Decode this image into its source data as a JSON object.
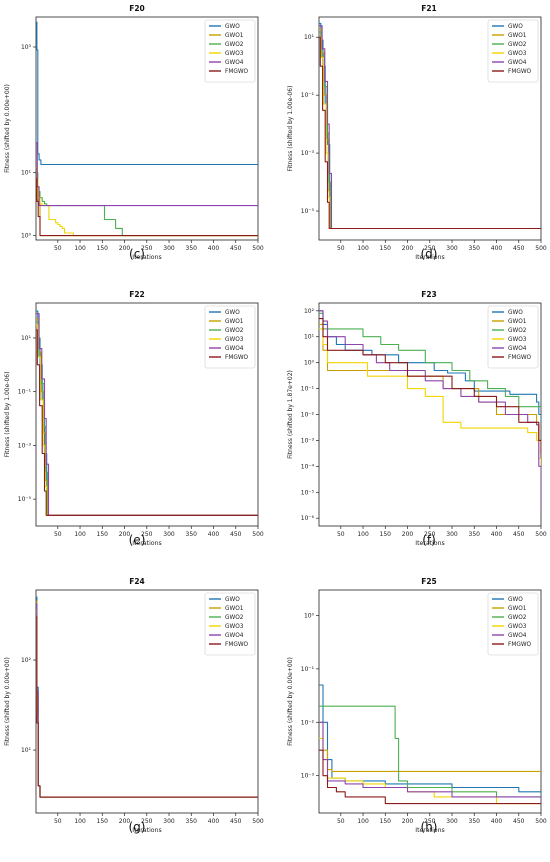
{
  "figure_captions": [
    "(c)",
    "(d)",
    "(e)",
    "(f)",
    "(g)",
    "(h)"
  ],
  "series_names": [
    "GWO",
    "GWO1",
    "GWO2",
    "GWO3",
    "GWO4",
    "FMGWO"
  ],
  "series_colors": [
    "#1f77b4",
    "#c8a000",
    "#4caf50",
    "#f2d400",
    "#8e44ad",
    "#8b1a1a"
  ],
  "chart_data": [
    {
      "type": "line",
      "title": "F20",
      "xlabel": "Iterations",
      "ylabel": "Fitness (shifted by 0.00e+00)",
      "xticks": [
        50,
        100,
        150,
        200,
        250,
        300,
        350,
        400,
        450,
        500
      ],
      "ytick_exponents": [
        0,
        1,
        3
      ],
      "yscale": "log",
      "ylim": [
        0.85,
        3000
      ],
      "xlim": [
        1,
        500
      ],
      "legend": "top-right",
      "series": [
        {
          "name": "GWO",
          "x": [
            1,
            3,
            5,
            8,
            12,
            500
          ],
          "y": [
            2500,
            900,
            20,
            16,
            13.5,
            13.5
          ]
        },
        {
          "name": "GWO1",
          "x": [
            1,
            3,
            6,
            10,
            500
          ],
          "y": [
            12,
            5,
            3.5,
            1,
            1
          ]
        },
        {
          "name": "GWO2",
          "x": [
            1,
            5,
            10,
            15,
            20,
            25,
            30,
            150,
            155,
            170,
            180,
            195,
            500
          ],
          "y": [
            10,
            5,
            4,
            3.5,
            3.2,
            3.0,
            3.0,
            3.0,
            1.8,
            1.8,
            1.3,
            1.0,
            1.0
          ]
        },
        {
          "name": "GWO3",
          "x": [
            1,
            5,
            10,
            15,
            25,
            30,
            40,
            45,
            50,
            55,
            60,
            65,
            80,
            85,
            500
          ],
          "y": [
            8,
            4,
            3.2,
            3.0,
            3.0,
            1.8,
            1.8,
            1.6,
            1.5,
            1.4,
            1.3,
            1.1,
            1.1,
            1.0,
            1.0
          ]
        },
        {
          "name": "GWO4",
          "x": [
            1,
            4,
            8,
            500
          ],
          "y": [
            30,
            6,
            3.0,
            3.0
          ]
        },
        {
          "name": "FMGWO",
          "x": [
            1,
            3,
            6,
            10,
            500
          ],
          "y": [
            8,
            3.5,
            2,
            1,
            1
          ]
        }
      ]
    },
    {
      "type": "line",
      "title": "F21",
      "xlabel": "Iterations",
      "ylabel": "Fitness (shifted by 1.00e-06)",
      "xticks": [
        50,
        100,
        150,
        200,
        250,
        300,
        350,
        400,
        450,
        500
      ],
      "ytick_exponents": [
        -5,
        -3,
        -1,
        1
      ],
      "yscale": "log",
      "ylim": [
        1e-06,
        50
      ],
      "xlim": [
        1,
        500
      ],
      "legend": "top-right",
      "series": [
        {
          "name": "GWO",
          "x": [
            1,
            5,
            10,
            15,
            20,
            25,
            28,
            500
          ],
          "y": [
            30,
            8,
            1,
            0.05,
            0.002,
            1e-05,
            2.5e-06,
            2.5e-06
          ]
        },
        {
          "name": "GWO1",
          "x": [
            1,
            6,
            12,
            18,
            22,
            26,
            500
          ],
          "y": [
            20,
            3,
            0.1,
            0.003,
            5e-05,
            2.5e-06,
            2.5e-06
          ]
        },
        {
          "name": "GWO2",
          "x": [
            1,
            7,
            13,
            19,
            23,
            27,
            500
          ],
          "y": [
            15,
            2,
            0.2,
            0.005,
            0.0001,
            2.5e-06,
            2.5e-06
          ]
        },
        {
          "name": "GWO3",
          "x": [
            1,
            5,
            11,
            17,
            21,
            25,
            500
          ],
          "y": [
            10,
            2,
            0.05,
            0.001,
            3e-05,
            2.5e-06,
            2.5e-06
          ]
        },
        {
          "name": "GWO4",
          "x": [
            1,
            8,
            14,
            20,
            24,
            29,
            500
          ],
          "y": [
            25,
            4,
            0.3,
            0.01,
            0.0002,
            2.5e-06,
            2.5e-06
          ]
        },
        {
          "name": "FMGWO",
          "x": [
            1,
            4,
            9,
            15,
            20,
            24,
            500
          ],
          "y": [
            10,
            1,
            0.03,
            0.0005,
            2e-05,
            2.5e-06,
            2.5e-06
          ]
        }
      ]
    },
    {
      "type": "line",
      "title": "F22",
      "xlabel": "Iterations",
      "ylabel": "Fitness (shifted by 1.00e-06)",
      "xticks": [
        50,
        100,
        150,
        200,
        250,
        300,
        350,
        400,
        450,
        500
      ],
      "ytick_exponents": [
        -5,
        -3,
        -1,
        1
      ],
      "yscale": "log",
      "ylim": [
        1e-06,
        200
      ],
      "xlim": [
        1,
        500
      ],
      "legend": "top-right",
      "series": [
        {
          "name": "GWO",
          "x": [
            1,
            5,
            10,
            15,
            20,
            25,
            28,
            500
          ],
          "y": [
            100,
            10,
            1,
            0.05,
            0.0005,
            1e-05,
            2.5e-06,
            2.5e-06
          ]
        },
        {
          "name": "GWO1",
          "x": [
            1,
            6,
            12,
            18,
            22,
            26,
            500
          ],
          "y": [
            50,
            3,
            0.1,
            0.003,
            5e-05,
            2.5e-06,
            2.5e-06
          ]
        },
        {
          "name": "GWO2",
          "x": [
            1,
            7,
            13,
            19,
            23,
            27,
            500
          ],
          "y": [
            40,
            2,
            0.2,
            0.005,
            0.0001,
            2.5e-06,
            2.5e-06
          ]
        },
        {
          "name": "GWO3",
          "x": [
            1,
            5,
            11,
            17,
            21,
            25,
            500
          ],
          "y": [
            30,
            2,
            0.05,
            0.001,
            3e-05,
            2.5e-06,
            2.5e-06
          ]
        },
        {
          "name": "GWO4",
          "x": [
            1,
            8,
            14,
            20,
            24,
            29,
            500
          ],
          "y": [
            80,
            4,
            0.3,
            0.01,
            0.0002,
            2.5e-06,
            2.5e-06
          ]
        },
        {
          "name": "FMGWO",
          "x": [
            1,
            4,
            9,
            15,
            20,
            24,
            500
          ],
          "y": [
            20,
            1,
            0.03,
            0.0005,
            2e-05,
            2.5e-06,
            2.5e-06
          ]
        }
      ]
    },
    {
      "type": "line",
      "title": "F23",
      "xlabel": "Iterations",
      "ylabel": "Fitness (shifted by 1.87e+02)",
      "xticks": [
        50,
        100,
        150,
        200,
        250,
        300,
        350,
        400,
        450,
        500
      ],
      "ytick_exponents": [
        -6,
        -5,
        -4,
        -3,
        -2,
        -1,
        0,
        1,
        2
      ],
      "yscale": "log",
      "ylim": [
        5e-07,
        200
      ],
      "xlim": [
        1,
        500
      ],
      "legend": "top-right",
      "series": [
        {
          "name": "GWO",
          "x": [
            1,
            10,
            20,
            40,
            60,
            120,
            180,
            220,
            260,
            290,
            330,
            350,
            390,
            430,
            470,
            490,
            495,
            500
          ],
          "y": [
            100,
            30,
            10,
            5,
            3,
            2,
            1,
            1,
            0.5,
            0.4,
            0.2,
            0.08,
            0.08,
            0.06,
            0.06,
            0.03,
            0.01,
            0.005
          ]
        },
        {
          "name": "GWO1",
          "x": [
            1,
            10,
            20,
            60,
            110,
            160,
            200,
            250,
            280,
            320,
            360,
            400,
            470,
            490,
            495,
            500
          ],
          "y": [
            30,
            3,
            0.5,
            0.5,
            0.5,
            0.5,
            0.3,
            0.3,
            0.1,
            0.1,
            0.03,
            0.01,
            0.01,
            0.004,
            0.001,
            0.0003
          ]
        },
        {
          "name": "GWO2",
          "x": [
            1,
            10,
            20,
            40,
            100,
            140,
            180,
            240,
            300,
            340,
            380,
            420,
            450,
            490,
            500
          ],
          "y": [
            80,
            20,
            20,
            20,
            10,
            5,
            3,
            1,
            0.5,
            0.2,
            0.1,
            0.05,
            0.02,
            0.02,
            0.02
          ]
        },
        {
          "name": "GWO3",
          "x": [
            1,
            10,
            20,
            60,
            110,
            150,
            200,
            240,
            280,
            320,
            380,
            420,
            470,
            490,
            495,
            500
          ],
          "y": [
            20,
            5,
            1,
            1,
            0.3,
            0.3,
            0.1,
            0.05,
            0.005,
            0.003,
            0.003,
            0.003,
            0.002,
            0.001,
            0.0002,
            0.0001
          ]
        },
        {
          "name": "GWO4",
          "x": [
            1,
            10,
            20,
            60,
            100,
            130,
            160,
            200,
            240,
            280,
            320,
            360,
            420,
            470,
            490,
            495,
            500
          ],
          "y": [
            100,
            40,
            10,
            5,
            2,
            1,
            0.5,
            0.5,
            0.2,
            0.1,
            0.05,
            0.03,
            0.01,
            0.005,
            0.004,
            0.0001,
            2e-06
          ]
        },
        {
          "name": "FMGWO",
          "x": [
            1,
            10,
            20,
            40,
            100,
            150,
            200,
            250,
            300,
            350,
            400,
            450,
            490,
            495,
            500
          ],
          "y": [
            50,
            10,
            3,
            3,
            2,
            1,
            0.3,
            0.3,
            0.1,
            0.05,
            0.02,
            0.005,
            0.005,
            0.001,
            0.0003
          ]
        }
      ]
    },
    {
      "type": "line",
      "title": "F24",
      "xlabel": "Iterations",
      "ylabel": "Fitness (shifted by 0.00e+00)",
      "xticks": [
        50,
        100,
        150,
        200,
        250,
        300,
        350,
        400,
        450,
        500
      ],
      "ytick_exponents": [
        1,
        2
      ],
      "yscale": "log",
      "ylim": [
        2,
        600
      ],
      "xlim": [
        1,
        500
      ],
      "legend": "top-right",
      "series": [
        {
          "name": "GWO",
          "x": [
            1,
            3,
            6,
            10,
            500
          ],
          "y": [
            500,
            50,
            4,
            3,
            3
          ]
        },
        {
          "name": "GWO1",
          "x": [
            1,
            3,
            6,
            10,
            500
          ],
          "y": [
            450,
            40,
            4,
            3,
            3
          ]
        },
        {
          "name": "GWO2",
          "x": [
            1,
            3,
            6,
            10,
            500
          ],
          "y": [
            400,
            30,
            4,
            3,
            3
          ]
        },
        {
          "name": "GWO3",
          "x": [
            1,
            3,
            6,
            10,
            500
          ],
          "y": [
            350,
            25,
            4,
            3,
            3
          ]
        },
        {
          "name": "GWO4",
          "x": [
            1,
            3,
            6,
            10,
            500
          ],
          "y": [
            420,
            45,
            4,
            3,
            3
          ]
        },
        {
          "name": "FMGWO",
          "x": [
            1,
            3,
            6,
            10,
            500
          ],
          "y": [
            300,
            20,
            4,
            3,
            3
          ]
        }
      ]
    },
    {
      "type": "line",
      "title": "F25",
      "xlabel": "Iterations",
      "ylabel": "Fitness (shifted by 0.00e+00)",
      "xticks": [
        50,
        100,
        150,
        200,
        250,
        300,
        350,
        400,
        450,
        500
      ],
      "ytick_exponents": [
        -3,
        -2,
        -1,
        0
      ],
      "yscale": "log",
      "ylim": [
        0.0002,
        3
      ],
      "xlim": [
        1,
        500
      ],
      "legend": "top-right",
      "series": [
        {
          "name": "GWO",
          "x": [
            1,
            5,
            10,
            20,
            30,
            60,
            100,
            150,
            200,
            300,
            400,
            450,
            500
          ],
          "y": [
            0.05,
            0.05,
            0.01,
            0.002,
            0.0009,
            0.0008,
            0.0008,
            0.0007,
            0.0007,
            0.0006,
            0.0006,
            0.0005,
            0.0004
          ]
        },
        {
          "name": "GWO1",
          "x": [
            1,
            10,
            20,
            30,
            500
          ],
          "y": [
            0.01,
            0.003,
            0.0013,
            0.0012,
            0.0012
          ]
        },
        {
          "name": "GWO2",
          "x": [
            1,
            10,
            20,
            168,
            172,
            180,
            200,
            300,
            400,
            500
          ],
          "y": [
            0.02,
            0.02,
            0.02,
            0.02,
            0.005,
            0.0008,
            0.0006,
            0.0005,
            0.0004,
            0.0003
          ]
        },
        {
          "name": "GWO3",
          "x": [
            1,
            10,
            20,
            60,
            100,
            150,
            200,
            260,
            300,
            400,
            450,
            500
          ],
          "y": [
            0.005,
            0.002,
            0.0009,
            0.0008,
            0.0007,
            0.0006,
            0.0005,
            0.0004,
            0.0004,
            0.0003,
            0.0003,
            0.0003
          ]
        },
        {
          "name": "GWO4",
          "x": [
            1,
            10,
            20,
            60,
            100,
            150,
            200,
            260,
            300,
            400,
            450,
            500
          ],
          "y": [
            0.01,
            0.002,
            0.0008,
            0.0007,
            0.0006,
            0.0006,
            0.0005,
            0.0005,
            0.0004,
            0.0004,
            0.0004,
            0.0003
          ]
        },
        {
          "name": "FMGWO",
          "x": [
            1,
            10,
            20,
            40,
            60,
            100,
            150,
            200,
            250,
            300,
            350,
            400,
            500
          ],
          "y": [
            0.003,
            0.001,
            0.0006,
            0.0005,
            0.0004,
            0.0004,
            0.0003,
            0.0003,
            0.0003,
            0.0003,
            0.0003,
            0.0003,
            0.0003
          ]
        }
      ]
    }
  ]
}
